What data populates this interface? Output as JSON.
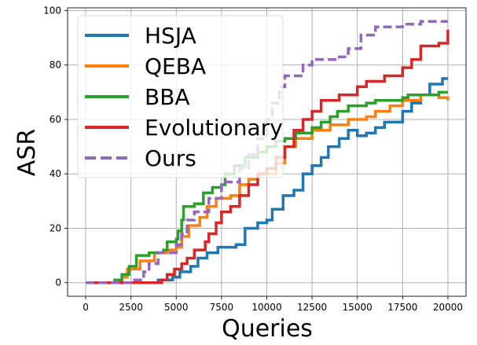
{
  "chart_data": {
    "type": "line",
    "xlabel": "Queries",
    "ylabel": "ASR",
    "xlim": [
      -1000,
      21000
    ],
    "ylim": [
      -5,
      101
    ],
    "xticks": [
      0,
      2500,
      5000,
      7500,
      10000,
      12500,
      15000,
      17500,
      20000
    ],
    "yticks": [
      0,
      20,
      40,
      60,
      80,
      100
    ],
    "grid": true,
    "legend_position": "top-left",
    "series": [
      {
        "name": "HSJA",
        "color": "#1f77b4",
        "dashed": false,
        "x": [
          0,
          3200,
          4000,
          4800,
          5200,
          5800,
          6200,
          6700,
          7300,
          8300,
          8800,
          9500,
          10000,
          10300,
          10900,
          11500,
          12000,
          12500,
          13000,
          13400,
          14000,
          14500,
          15000,
          15500,
          16000,
          16500,
          17500,
          18000,
          18500,
          19000,
          19700,
          20000
        ],
        "y": [
          0,
          0,
          1,
          2,
          4,
          6,
          9,
          11,
          13,
          14,
          20,
          22,
          23,
          27,
          32,
          34,
          40,
          43,
          46,
          50,
          53,
          56,
          54,
          55,
          57,
          59,
          63,
          66,
          69,
          73,
          75,
          75
        ]
      },
      {
        "name": "QEBA",
        "color": "#ff7f0e",
        "dashed": false,
        "x": [
          0,
          1800,
          2000,
          2300,
          3000,
          3800,
          4500,
          5000,
          5300,
          5700,
          6300,
          6700,
          7200,
          8000,
          8500,
          9000,
          9500,
          10500,
          11000,
          11600,
          12500,
          13500,
          14500,
          15500,
          16000,
          16800,
          17500,
          18500,
          19500,
          20000
        ],
        "y": [
          0,
          0,
          2,
          5,
          8,
          11,
          12,
          13,
          17,
          21,
          24,
          28,
          31,
          32,
          36,
          38,
          40,
          44,
          50,
          53,
          56,
          58,
          60,
          61,
          63,
          65,
          67,
          69,
          68,
          67
        ]
      },
      {
        "name": "BBA",
        "color": "#2ca02c",
        "dashed": false,
        "x": [
          0,
          1400,
          1600,
          2000,
          2400,
          2800,
          3500,
          4300,
          4500,
          5000,
          5100,
          5300,
          5400,
          6000,
          6500,
          7000,
          7500,
          7700,
          8200,
          8800,
          9500,
          10000,
          10500,
          11000,
          11600,
          12500,
          13000,
          13500,
          13900,
          14500,
          15500,
          16000,
          17500,
          17800,
          19500,
          20000
        ],
        "y": [
          0,
          0,
          1,
          3,
          6,
          10,
          11,
          12,
          15,
          16,
          19,
          23,
          28,
          29,
          33,
          35,
          36,
          40,
          43,
          46,
          48,
          50,
          52,
          53,
          55,
          57,
          59,
          61,
          63,
          65,
          66,
          67,
          68,
          69,
          70,
          70
        ]
      },
      {
        "name": "Evolutionary",
        "color": "#d62728",
        "dashed": false,
        "x": [
          0,
          4000,
          4200,
          4500,
          4900,
          5300,
          5600,
          6000,
          6600,
          6800,
          7200,
          7500,
          8000,
          8500,
          9000,
          9500,
          10000,
          10500,
          11000,
          11500,
          12000,
          12500,
          13000,
          14000,
          15000,
          15500,
          16500,
          17500,
          18000,
          18500,
          19500,
          20000
        ],
        "y": [
          0,
          0,
          1,
          3,
          5,
          7,
          9,
          12,
          15,
          18,
          22,
          26,
          28,
          32,
          36,
          40,
          42,
          46,
          50,
          56,
          60,
          63,
          67,
          69,
          72,
          74,
          76,
          79,
          82,
          87,
          88,
          93
        ]
      },
      {
        "name": "Ours",
        "color": "#9467bd",
        "dashed": true,
        "x": [
          0,
          2500,
          2700,
          3200,
          3500,
          4000,
          5000,
          5300,
          5600,
          6000,
          6800,
          7500,
          8500,
          9000,
          9500,
          10000,
          10300,
          10700,
          11000,
          12000,
          12500,
          14000,
          14500,
          15200,
          16000,
          17500,
          18500,
          20000
        ],
        "y": [
          0,
          0,
          1,
          4,
          7,
          11,
          14,
          18,
          23,
          26,
          31,
          37,
          42,
          47,
          53,
          60,
          66,
          72,
          76,
          80,
          82,
          83,
          86,
          91,
          94,
          95,
          96,
          96
        ]
      }
    ]
  }
}
